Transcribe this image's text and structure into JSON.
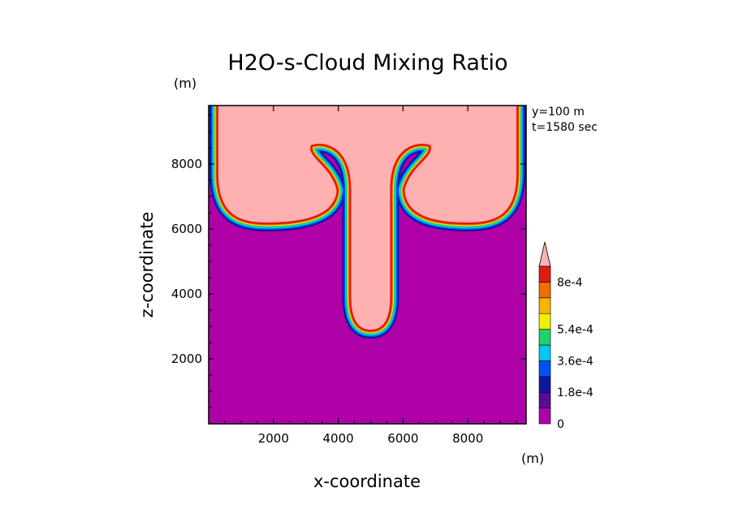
{
  "chart_data": {
    "type": "heatmap",
    "title": "H2O-s-Cloud Mixing Ratio",
    "xlabel": "x-coordinate",
    "ylabel": "z-coordinate",
    "x_unit": "(m)",
    "y_unit": "(m)",
    "annotations": [
      "y=100 m",
      "t=1580 sec"
    ],
    "xlim": [
      0,
      9800
    ],
    "ylim": [
      0,
      9800
    ],
    "x_ticks": [
      2000,
      4000,
      6000,
      8000
    ],
    "y_ticks": [
      2000,
      4000,
      6000,
      8000
    ],
    "x_tick_labels": [
      "2000",
      "4000",
      "6000",
      "8000"
    ],
    "y_tick_labels": [
      "2000",
      "4000",
      "6000",
      "8000"
    ],
    "colorbar": {
      "levels": [
        0,
        9e-05,
        0.00018,
        0.00027,
        0.00036,
        0.00045,
        0.00054,
        0.00063,
        0.00072,
        0.0008
      ],
      "tick_labels": [
        {
          "value": 0,
          "label": "0"
        },
        {
          "value": 0.00018,
          "label": "1.8e-4"
        },
        {
          "value": 0.00036,
          "label": "3.6e-4"
        },
        {
          "value": 0.00054,
          "label": "5.4e-4"
        },
        {
          "value": 0.0008,
          "label": "8e-4"
        }
      ],
      "colors": [
        "#b000a8",
        "#5a0a9a",
        "#0a1aa0",
        "#0050f0",
        "#00c8f0",
        "#1ed26e",
        "#f0f000",
        "#f8b400",
        "#f06e00",
        "#e41a10",
        "#ffb0b0"
      ]
    },
    "field": {
      "background_value": 0,
      "cloud_value": 0.0008,
      "cap_top": 9800,
      "cap_bottom_z": 6200,
      "cap_edge_x": [
        300,
        9500
      ],
      "stem_x": [
        4400,
        5600
      ],
      "stem_bottom_z": 2900,
      "stem_center_x": 5000
    }
  }
}
